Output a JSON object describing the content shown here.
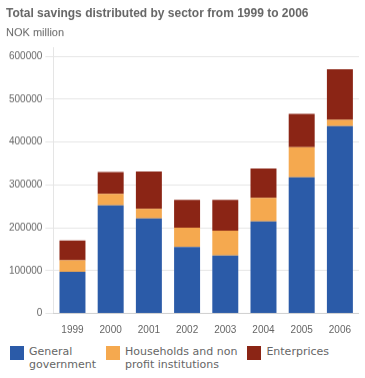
{
  "chart_data": {
    "type": "bar",
    "stacked": true,
    "title": "Total savings distributed by sector from 1999 to 2006",
    "ylabel": "NOK million",
    "categories": [
      "1999",
      "2000",
      "2001",
      "2002",
      "2003",
      "2004",
      "2005",
      "2006"
    ],
    "series": [
      {
        "name": "General\ngovernment",
        "color": "#2B5BA8",
        "values": [
          97000,
          252000,
          222000,
          155000,
          135000,
          215000,
          318000,
          437000
        ]
      },
      {
        "name": "Households and non\nprofit institutions",
        "color": "#F5A94F",
        "values": [
          27000,
          27000,
          22000,
          45000,
          58000,
          55000,
          70000,
          15000
        ]
      },
      {
        "name": "Enterprices",
        "color": "#8B2515",
        "values": [
          46000,
          51000,
          87000,
          65000,
          72000,
          68000,
          78000,
          118000
        ]
      }
    ],
    "ylim": [
      0,
      620000
    ],
    "yticks": [
      0,
      100000,
      200000,
      300000,
      400000,
      500000,
      600000
    ],
    "grid": true,
    "legend": "bottom"
  }
}
